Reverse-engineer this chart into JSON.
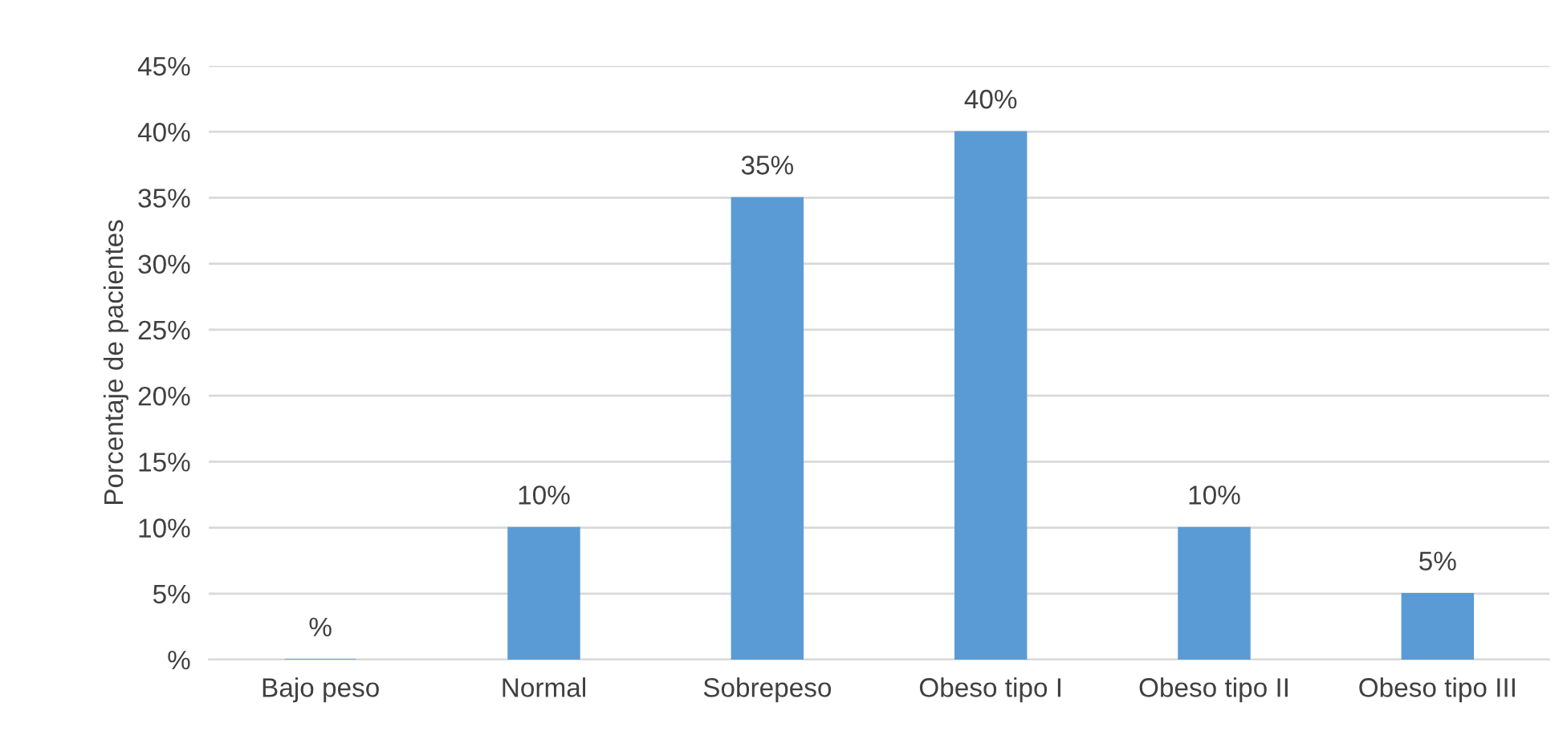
{
  "chart_data": {
    "type": "bar",
    "ylabel": "Porcentaje de pacientes",
    "categories": [
      "Bajo peso",
      "Normal",
      "Sobrepeso",
      "Obeso tipo I",
      "Obeso tipo II",
      "Obeso tipo III"
    ],
    "values": [
      0,
      10,
      35,
      40,
      10,
      5
    ],
    "value_labels": [
      "%",
      "10%",
      "35%",
      "40%",
      "10%",
      "5%"
    ],
    "color": "#5b9bd5",
    "ylim": [
      0,
      45
    ],
    "yticks": [
      {
        "value": 0,
        "label": "%"
      },
      {
        "value": 5,
        "label": "5%"
      },
      {
        "value": 10,
        "label": "10%"
      },
      {
        "value": 15,
        "label": "15%"
      },
      {
        "value": 20,
        "label": "20%"
      },
      {
        "value": 25,
        "label": "25%"
      },
      {
        "value": 30,
        "label": "30%"
      },
      {
        "value": 35,
        "label": "35%"
      },
      {
        "value": 40,
        "label": "40%"
      },
      {
        "value": 45,
        "label": "45%"
      }
    ],
    "grid": "y",
    "legend": false
  }
}
